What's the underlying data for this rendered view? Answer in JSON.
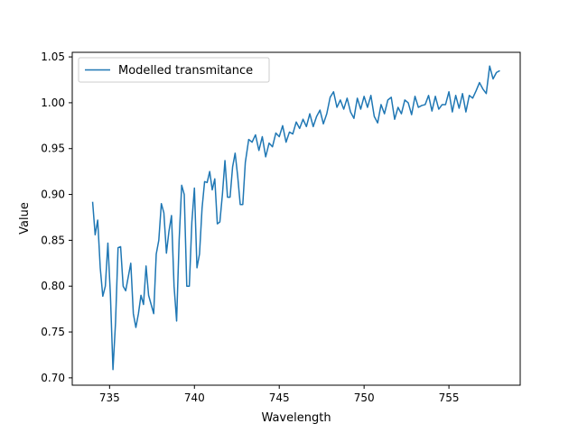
{
  "chart_data": {
    "type": "line",
    "title": "",
    "xlabel": "Wavelength",
    "ylabel": "Value",
    "xlim": [
      732.8,
      759.2
    ],
    "ylim": [
      0.692,
      1.055
    ],
    "xticks": [
      735,
      740,
      745,
      750,
      755
    ],
    "xtick_labels": [
      "735",
      "740",
      "745",
      "750",
      "755"
    ],
    "yticks": [
      0.7,
      0.75,
      0.8,
      0.85,
      0.9,
      0.95,
      1.0,
      1.05
    ],
    "ytick_labels": [
      "0.70",
      "0.75",
      "0.80",
      "0.85",
      "0.90",
      "0.95",
      "1.00",
      "1.05"
    ],
    "grid": false,
    "legend_position": "top-left",
    "series": [
      {
        "name": "Modelled transmitance",
        "color": "#1f77b4",
        "x": [
          734.0,
          734.15,
          734.3,
          734.45,
          734.6,
          734.75,
          734.9,
          735.05,
          735.2,
          735.35,
          735.5,
          735.65,
          735.8,
          735.95,
          736.1,
          736.25,
          736.4,
          736.55,
          736.7,
          736.85,
          737.0,
          737.15,
          737.3,
          737.45,
          737.6,
          737.75,
          737.9,
          738.05,
          738.2,
          738.35,
          738.5,
          738.65,
          738.8,
          738.95,
          739.1,
          739.25,
          739.4,
          739.55,
          739.7,
          739.85,
          740.0,
          740.15,
          740.3,
          740.45,
          740.6,
          740.75,
          740.9,
          741.05,
          741.2,
          741.35,
          741.5,
          741.65,
          741.8,
          741.95,
          742.1,
          742.25,
          742.4,
          742.55,
          742.7,
          742.85,
          743.0,
          743.2,
          743.4,
          743.6,
          743.8,
          744.0,
          744.2,
          744.4,
          744.6,
          744.8,
          745.0,
          745.2,
          745.4,
          745.6,
          745.8,
          746.0,
          746.2,
          746.4,
          746.6,
          746.8,
          747.0,
          747.2,
          747.4,
          747.6,
          747.8,
          748.0,
          748.2,
          748.4,
          748.6,
          748.8,
          749.0,
          749.2,
          749.4,
          749.6,
          749.8,
          750.0,
          750.2,
          750.4,
          750.6,
          750.8,
          751.0,
          751.2,
          751.4,
          751.6,
          751.8,
          752.0,
          752.2,
          752.4,
          752.6,
          752.8,
          753.0,
          753.2,
          753.4,
          753.6,
          753.8,
          754.0,
          754.2,
          754.4,
          754.6,
          754.8,
          755.0,
          755.2,
          755.4,
          755.6,
          755.8,
          756.0,
          756.2,
          756.4,
          756.6,
          756.8,
          757.0,
          757.2,
          757.4,
          757.6,
          757.8,
          758.0
        ],
        "y": [
          0.892,
          0.856,
          0.872,
          0.82,
          0.789,
          0.8,
          0.847,
          0.79,
          0.709,
          0.76,
          0.842,
          0.843,
          0.8,
          0.795,
          0.81,
          0.825,
          0.77,
          0.755,
          0.77,
          0.79,
          0.78,
          0.822,
          0.79,
          0.78,
          0.77,
          0.835,
          0.85,
          0.89,
          0.88,
          0.836,
          0.86,
          0.877,
          0.8,
          0.762,
          0.85,
          0.91,
          0.9,
          0.8,
          0.8,
          0.87,
          0.907,
          0.82,
          0.835,
          0.885,
          0.914,
          0.913,
          0.925,
          0.905,
          0.917,
          0.868,
          0.87,
          0.9,
          0.937,
          0.897,
          0.897,
          0.93,
          0.945,
          0.92,
          0.889,
          0.889,
          0.935,
          0.96,
          0.957,
          0.965,
          0.948,
          0.963,
          0.941,
          0.956,
          0.952,
          0.967,
          0.963,
          0.975,
          0.957,
          0.968,
          0.966,
          0.979,
          0.972,
          0.982,
          0.974,
          0.988,
          0.974,
          0.985,
          0.992,
          0.977,
          0.988,
          1.006,
          1.012,
          0.995,
          1.003,
          0.993,
          1.005,
          0.99,
          0.983,
          1.005,
          0.993,
          1.007,
          0.995,
          1.008,
          0.985,
          0.978,
          0.998,
          0.988,
          1.003,
          1.006,
          0.982,
          0.995,
          0.988,
          1.003,
          1.0,
          0.987,
          1.007,
          0.995,
          0.997,
          0.998,
          1.008,
          0.991,
          1.007,
          0.993,
          0.998,
          0.998,
          1.012,
          0.99,
          1.008,
          0.994,
          1.01,
          0.99,
          1.008,
          1.005,
          1.013,
          1.022,
          1.015,
          1.01,
          1.04,
          1.026,
          1.033,
          1.035
        ]
      }
    ]
  }
}
